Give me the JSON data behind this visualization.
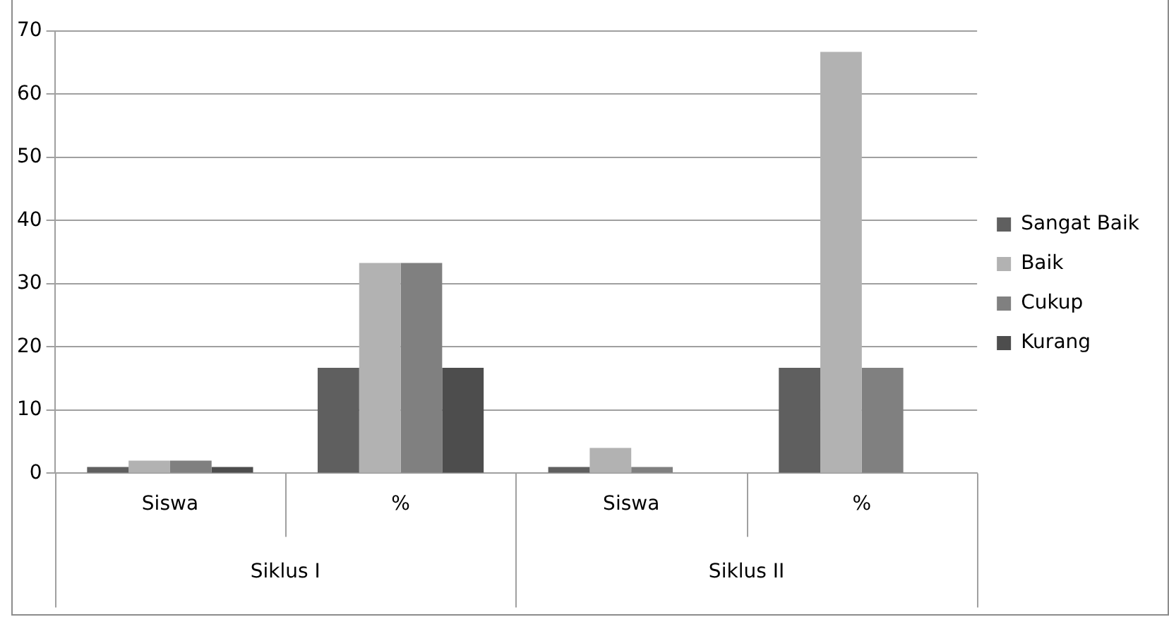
{
  "chart_data": {
    "type": "bar",
    "categories": [
      "Siswa",
      "%",
      "Siswa",
      "%"
    ],
    "annotations": [
      "Siklus I",
      "Siklus II"
    ],
    "series": [
      {
        "name": "Sangat Baik",
        "color": "#5f5f5f",
        "values": [
          1,
          16.7,
          1,
          16.7
        ]
      },
      {
        "name": "Baik",
        "color": "#b2b2b2",
        "values": [
          2,
          33.3,
          4,
          66.7
        ]
      },
      {
        "name": "Cukup",
        "color": "#808080",
        "values": [
          2,
          33.3,
          1,
          16.7
        ]
      },
      {
        "name": "Kurang",
        "color": "#4d4d4d",
        "values": [
          1,
          16.7,
          0,
          0
        ]
      }
    ],
    "ylim": [
      0,
      70
    ],
    "yticks": [
      0,
      10,
      20,
      30,
      40,
      50,
      60,
      70
    ],
    "grid": "y",
    "legend": "right"
  }
}
